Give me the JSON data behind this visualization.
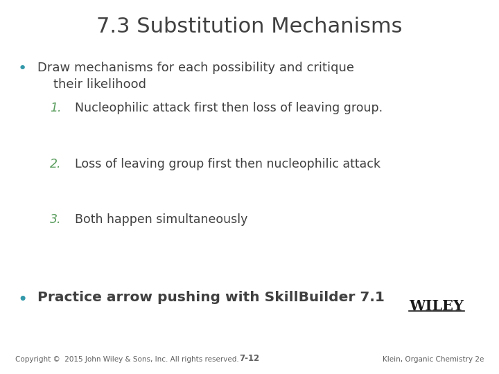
{
  "title": "7.3 Substitution Mechanisms",
  "title_color": "#404040",
  "title_fontsize": 22,
  "bullet1_line1": "Draw mechanisms for each possibility and critique",
  "bullet1_line2": "    their likelihood",
  "bullet1_color": "#404040",
  "bullet1_fontsize": 13,
  "bullet_dot_color": "#3399AA",
  "numbered_items": [
    "Nucleophilic attack first then loss of leaving group.",
    "Loss of leaving group first then nucleophilic attack",
    "Both happen simultaneously"
  ],
  "numbered_color": "#404040",
  "numbered_num_color": "#5B9E5F",
  "numbered_fontsize": 12.5,
  "bullet2_text": "Practice arrow pushing with SkillBuilder 7.1",
  "bullet2_fontsize": 14.5,
  "bullet2_color": "#404040",
  "footer_left": "Copyright ©  2015 John Wiley & Sons, Inc. All rights reserved.",
  "footer_center": "7-12",
  "footer_right": "Klein, Organic Chemistry 2e",
  "footer_fontsize": 7.5,
  "footer_color": "#606060",
  "wiley_text": "WILEY",
  "wiley_fontsize": 15,
  "wiley_color": "#1a1a1a",
  "background_color": "#ffffff"
}
